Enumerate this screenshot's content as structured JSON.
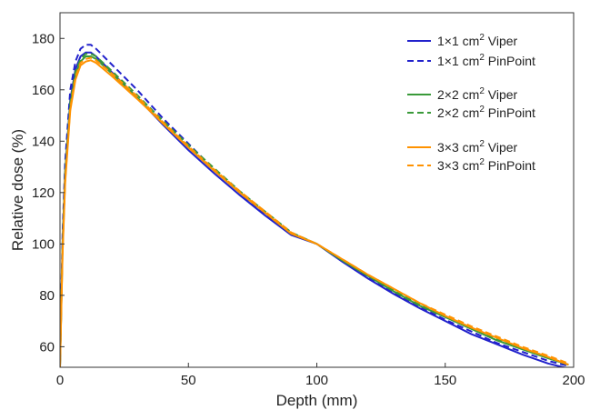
{
  "chart_data": {
    "type": "line",
    "xlabel": "Depth (mm)",
    "ylabel": "Relative dose (%)",
    "xlim": [
      0,
      200
    ],
    "ylim": [
      52,
      190
    ],
    "xticks": [
      0,
      50,
      100,
      150,
      200
    ],
    "yticks": [
      60,
      80,
      100,
      120,
      140,
      160,
      180
    ],
    "grid": false,
    "legend_position": "top-right",
    "series": [
      {
        "name": "1×1 cm² Viper",
        "legend": {
          "base": "1×1 cm",
          "sup": "2",
          "rest": " Viper"
        },
        "color": "#2222cc",
        "dash": "solid",
        "x": [
          0,
          1,
          2,
          4,
          6,
          8,
          10,
          12,
          14,
          20,
          30,
          40,
          50,
          60,
          70,
          80,
          90,
          100,
          110,
          120,
          130,
          140,
          150,
          160,
          170,
          180,
          190,
          198
        ],
        "y": [
          52,
          100,
          128,
          156,
          168,
          173,
          174.5,
          174.5,
          173,
          167,
          157,
          146.5,
          136.5,
          127.5,
          119,
          111,
          103.5,
          100,
          93,
          86.5,
          80.5,
          75,
          70,
          65,
          61,
          57,
          53.5,
          51.5
        ]
      },
      {
        "name": "1×1 cm² PinPoint",
        "legend": {
          "base": "1×1 cm",
          "sup": "2",
          "rest": " PinPoint"
        },
        "color": "#2222cc",
        "dash": "dashed",
        "x": [
          0,
          1,
          2,
          4,
          6,
          8,
          10,
          12,
          14,
          20,
          30,
          40,
          50,
          60,
          70,
          80,
          90,
          100,
          110,
          120,
          130,
          140,
          150,
          160,
          170,
          180,
          190,
          198
        ],
        "y": [
          55,
          104,
          132,
          160,
          171,
          176,
          177.5,
          177.5,
          176,
          170,
          160,
          149,
          139,
          129,
          120,
          111.5,
          104,
          100,
          93.5,
          87,
          81,
          75.5,
          70.5,
          66,
          61.5,
          58,
          54.5,
          52.5
        ]
      },
      {
        "name": "2×2 cm² Viper",
        "legend": {
          "base": "2×2 cm",
          "sup": "2",
          "rest": " Viper"
        },
        "color": "#3a9a3a",
        "dash": "solid",
        "x": [
          0,
          1,
          2,
          4,
          6,
          8,
          10,
          12,
          14,
          20,
          30,
          40,
          50,
          60,
          70,
          80,
          90,
          100,
          110,
          120,
          130,
          140,
          150,
          160,
          170,
          180,
          190,
          198
        ],
        "y": [
          52,
          98,
          126,
          154,
          166,
          171,
          173,
          173,
          172,
          166.5,
          157,
          147,
          137.5,
          128.5,
          120,
          112,
          104,
          100,
          93.5,
          87.5,
          81.5,
          76,
          71.5,
          67,
          62.5,
          59,
          55.5,
          53
        ]
      },
      {
        "name": "2×2 cm² PinPoint",
        "legend": {
          "base": "2×2 cm",
          "sup": "2",
          "rest": " PinPoint"
        },
        "color": "#3a9a3a",
        "dash": "dashed",
        "x": [
          0,
          1,
          2,
          4,
          6,
          8,
          10,
          12,
          14,
          20,
          30,
          40,
          50,
          60,
          70,
          80,
          90,
          100,
          110,
          120,
          130,
          140,
          150,
          160,
          170,
          180,
          190,
          198
        ],
        "y": [
          53,
          100,
          128,
          155,
          167,
          172,
          174,
          174,
          173,
          167.5,
          158,
          148,
          138.5,
          129.5,
          120.5,
          112.5,
          104.5,
          100,
          93.5,
          87.5,
          82,
          76.5,
          72,
          67.5,
          63,
          59.5,
          56,
          53
        ]
      },
      {
        "name": "3×3 cm² Viper",
        "legend": {
          "base": "3×3 cm",
          "sup": "2",
          "rest": " Viper"
        },
        "color": "#ff9200",
        "dash": "solid",
        "x": [
          0,
          1,
          2,
          4,
          6,
          8,
          10,
          12,
          14,
          20,
          30,
          40,
          50,
          60,
          70,
          80,
          90,
          100,
          110,
          120,
          130,
          140,
          150,
          160,
          170,
          180,
          190,
          198
        ],
        "y": [
          52,
          96,
          124,
          152,
          164,
          169.5,
          171,
          171.5,
          170.5,
          165.5,
          156.5,
          147,
          137.5,
          128.5,
          120,
          112,
          104,
          100,
          94,
          88,
          82.5,
          77,
          72,
          67.5,
          63.5,
          59.5,
          56,
          53
        ]
      },
      {
        "name": "3×3 cm² PinPoint",
        "legend": {
          "base": "3×3 cm",
          "sup": "2",
          "rest": " PinPoint"
        },
        "color": "#ff9200",
        "dash": "dashed",
        "x": [
          0,
          1,
          2,
          4,
          6,
          8,
          10,
          12,
          14,
          20,
          30,
          40,
          50,
          60,
          70,
          80,
          90,
          100,
          110,
          120,
          130,
          140,
          150,
          160,
          170,
          180,
          190,
          198
        ],
        "y": [
          53,
          97,
          125,
          153,
          165,
          170.5,
          172,
          172.5,
          171.5,
          166.5,
          157.5,
          147.5,
          138,
          129,
          120.5,
          112.5,
          104.5,
          100,
          94,
          88,
          82.5,
          77,
          72.5,
          68,
          64,
          60,
          56.5,
          53.5
        ]
      }
    ]
  }
}
